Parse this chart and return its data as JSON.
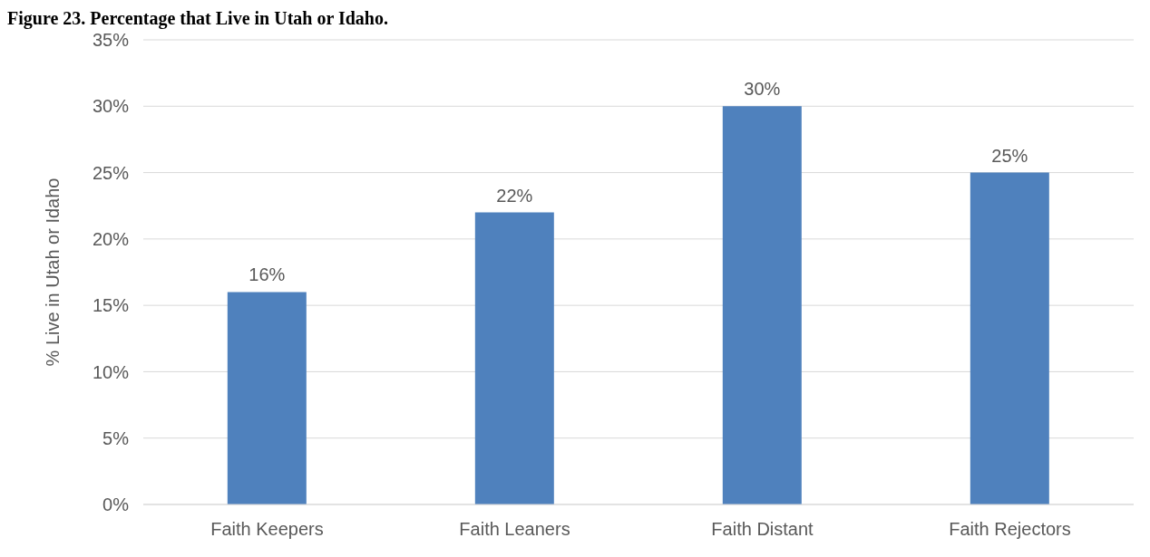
{
  "chart_data": {
    "type": "bar",
    "title": "Figure 23. Percentage that Live in Utah or Idaho.",
    "ylabel": "% Live in Utah or Idaho",
    "categories": [
      "Faith Keepers",
      "Faith Leaners",
      "Faith Distant",
      "Faith Rejectors"
    ],
    "values": [
      16,
      22,
      30,
      25
    ],
    "value_labels": [
      "16%",
      "22%",
      "30%",
      "25%"
    ],
    "color": "#4f81bd",
    "ylim": [
      0,
      35
    ],
    "yticks": [
      {
        "value": 0,
        "label": "0%"
      },
      {
        "value": 5,
        "label": "5%"
      },
      {
        "value": 10,
        "label": "10%"
      },
      {
        "value": 15,
        "label": "15%"
      },
      {
        "value": 20,
        "label": "20%"
      },
      {
        "value": 25,
        "label": "25%"
      },
      {
        "value": 30,
        "label": "30%"
      },
      {
        "value": 35,
        "label": "35%"
      }
    ],
    "grid": "y",
    "legend": false
  }
}
